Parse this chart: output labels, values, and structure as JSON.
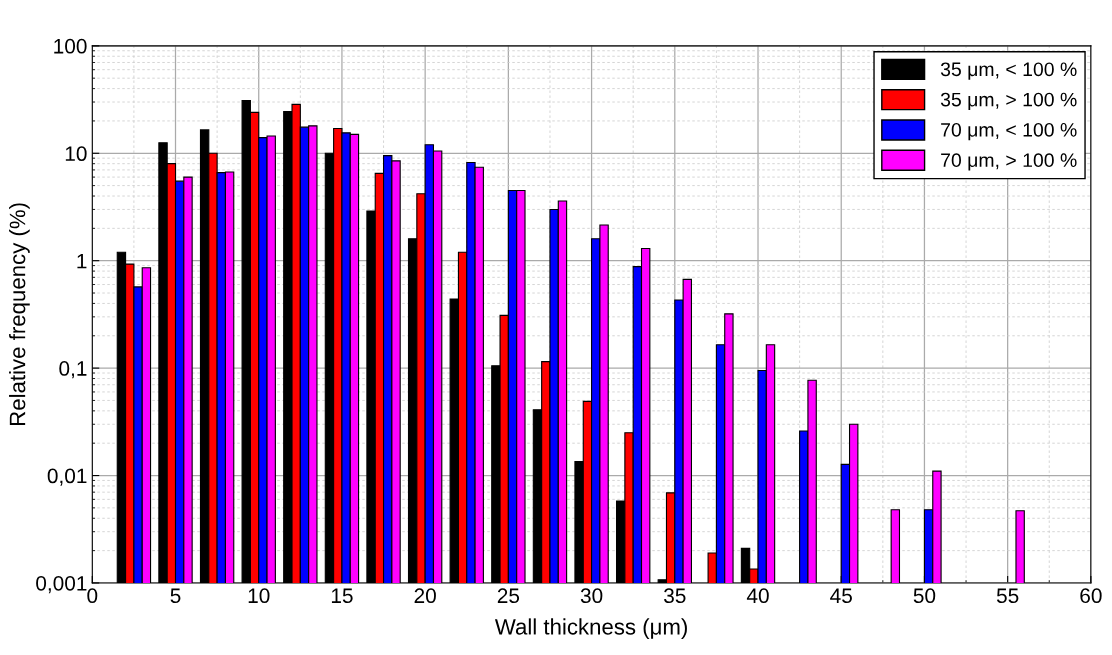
{
  "chart_data": {
    "type": "bar",
    "xlabel": "Wall thickness (μm)",
    "ylabel": "Relative frequency (%)",
    "x": [
      2.5,
      5,
      7.5,
      10,
      12.5,
      15,
      17.5,
      20,
      22.5,
      25,
      27.5,
      30,
      32.5,
      35,
      37.5,
      40,
      42.5,
      45,
      47.5,
      50,
      52.5,
      55
    ],
    "series": [
      {
        "name": "35 μm, < 100 %",
        "color": "#000000",
        "values": [
          1.2,
          12.5,
          16.5,
          31,
          24.5,
          10,
          2.9,
          1.6,
          0.44,
          0.105,
          0.041,
          0.0135,
          0.0058,
          0.00107,
          null,
          0.0021,
          null,
          null,
          null,
          null,
          null,
          null
        ]
      },
      {
        "name": "35 μm, > 100 %",
        "color": "#ff0000",
        "values": [
          0.93,
          8,
          10,
          24,
          28.5,
          17,
          6.5,
          4.2,
          1.2,
          0.31,
          0.115,
          0.049,
          0.025,
          0.0069,
          0.0019,
          0.00135,
          null,
          null,
          null,
          null,
          null,
          null
        ]
      },
      {
        "name": "70 μm, < 100 %",
        "color": "#0000ff",
        "values": [
          0.57,
          5.5,
          6.6,
          14,
          17.5,
          15.5,
          9.5,
          12,
          8.2,
          4.5,
          3.0,
          1.6,
          0.88,
          0.43,
          0.165,
          0.095,
          0.026,
          0.0127,
          null,
          0.0048,
          null,
          null
        ]
      },
      {
        "name": "70 μm, > 100 %",
        "color": "#ff00ff",
        "values": [
          0.86,
          6,
          6.7,
          14.5,
          18,
          15,
          8.5,
          10.5,
          7.4,
          4.5,
          3.6,
          2.15,
          1.3,
          0.67,
          0.32,
          0.165,
          0.077,
          0.03,
          0.0048,
          0.011,
          null,
          0.0047
        ]
      }
    ],
    "log": "y",
    "xlim": [
      0,
      60
    ],
    "xticks": [
      0,
      5,
      10,
      15,
      20,
      25,
      30,
      35,
      40,
      45,
      50,
      55,
      60
    ],
    "ylim": [
      0.001,
      100
    ],
    "yticks": [
      {
        "value": 0.001,
        "label": "0,001"
      },
      {
        "value": 0.01,
        "label": "0,01"
      },
      {
        "value": 0.1,
        "label": "0,1"
      },
      1,
      10,
      100
    ],
    "grid": true,
    "legend": "top right"
  }
}
